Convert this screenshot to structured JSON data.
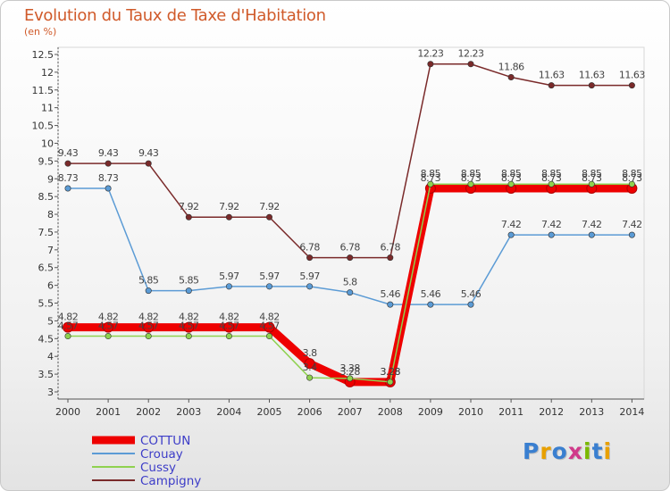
{
  "title": "Evolution du Taux de Taxe d'Habitation",
  "unit": "(en %)",
  "logo": {
    "text": "Proxiti",
    "colors": [
      "#3a7fd0",
      "#e8a000",
      "#3a7fd0",
      "#d03a8a",
      "#7ab800",
      "#3a7fd0",
      "#e8a000"
    ]
  },
  "chart_data": {
    "type": "line",
    "title": "Evolution du Taux de Taxe d'Habitation",
    "ylabel": "(en %)",
    "xlabel": "",
    "ylim": [
      3,
      12.5
    ],
    "yticks": [
      3,
      3.5,
      4,
      4.5,
      5,
      5.5,
      6,
      6.5,
      7,
      7.5,
      8,
      8.5,
      9,
      9.5,
      10,
      10.5,
      11,
      11.5,
      12,
      12.5
    ],
    "x": [
      "2000",
      "2001",
      "2002",
      "2003",
      "2004",
      "2005",
      "2006",
      "2007",
      "2008",
      "2009",
      "2010",
      "2011",
      "2012",
      "2013",
      "2014"
    ],
    "series": [
      {
        "name": "COTTUN",
        "color": "#ee0000",
        "values": [
          4.82,
          4.82,
          4.82,
          4.82,
          4.82,
          4.82,
          3.8,
          3.28,
          3.28,
          8.73,
          8.73,
          8.73,
          8.73,
          8.73,
          8.73
        ]
      },
      {
        "name": "Crouay",
        "color": "#5b9bd5",
        "values": [
          8.73,
          8.73,
          5.85,
          5.85,
          5.97,
          5.97,
          5.97,
          5.8,
          5.46,
          5.46,
          5.46,
          7.42,
          7.42,
          7.42,
          7.42
        ]
      },
      {
        "name": "Cussy",
        "color": "#8fd14f",
        "values": [
          4.57,
          4.57,
          4.57,
          4.57,
          4.57,
          4.57,
          3.4,
          3.38,
          3.28,
          8.85,
          8.85,
          8.85,
          8.85,
          8.85,
          8.85
        ]
      },
      {
        "name": "Campigny",
        "color": "#7a2a2a",
        "values": [
          9.43,
          9.43,
          9.43,
          7.92,
          7.92,
          7.92,
          6.78,
          6.78,
          6.78,
          12.23,
          12.23,
          11.86,
          11.63,
          11.63,
          11.63
        ]
      }
    ],
    "legend_position": "bottom-left"
  }
}
